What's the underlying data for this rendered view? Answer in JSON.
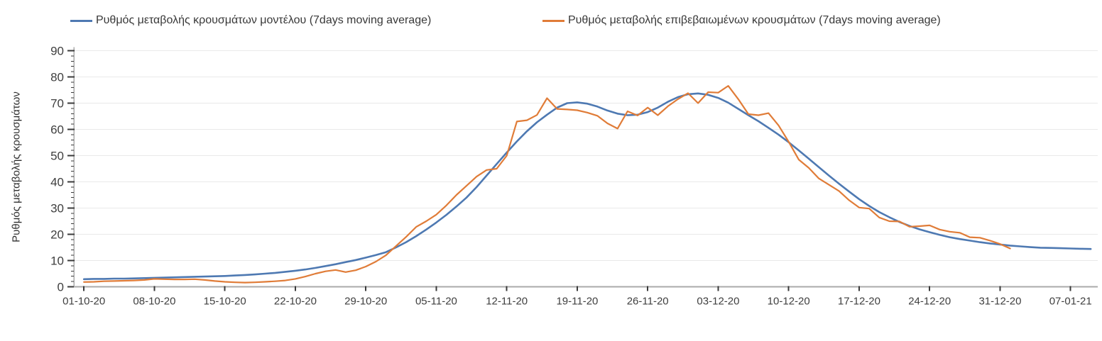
{
  "chart_data": {
    "type": "line",
    "title": "",
    "xlabel": "",
    "ylabel": "Ρυθμός μεταβολής κρουσμάτων",
    "grid": "horizontal-only",
    "legend_position": "top",
    "ylim": [
      0,
      90
    ],
    "y_tick_values": [
      0,
      10,
      20,
      30,
      40,
      50,
      60,
      70,
      80,
      90
    ],
    "y_minor_tick_step": 2,
    "x_start_date": "01-10-20",
    "x_point_interval": "1 day",
    "x_tick_days": [
      0,
      7,
      14,
      21,
      28,
      35,
      42,
      49,
      56,
      63,
      70,
      77,
      84,
      91,
      98
    ],
    "x_tick_labels": [
      "01-10-20",
      "08-10-20",
      "15-10-20",
      "22-10-20",
      "29-10-20",
      "05-11-20",
      "12-11-20",
      "19-11-20",
      "26-11-20",
      "03-12-20",
      "10-12-20",
      "17-12-20",
      "24-12-20",
      "31-12-20",
      "07-01-21"
    ],
    "x_domain_days": [
      -1,
      100.7
    ],
    "series": [
      {
        "name": "Ρυθμός μεταβολής κρουσμάτων μοντέλου (7days moving average)",
        "color": "#4e79b2",
        "marker": "line",
        "start_day": 0,
        "values": [
          2.9,
          3.0,
          3.0,
          3.1,
          3.1,
          3.2,
          3.3,
          3.4,
          3.5,
          3.6,
          3.7,
          3.8,
          3.9,
          4.0,
          4.1,
          4.3,
          4.5,
          4.7,
          5.0,
          5.3,
          5.7,
          6.1,
          6.6,
          7.2,
          7.9,
          8.6,
          9.4,
          10.2,
          11.1,
          12.1,
          13.2,
          15.0,
          17.0,
          19.3,
          21.8,
          24.5,
          27.4,
          30.6,
          34.0,
          38.0,
          42.4,
          46.8,
          51.2,
          55.4,
          59.3,
          62.7,
          65.6,
          68.3,
          70.0,
          70.3,
          69.8,
          68.7,
          67.2,
          66.0,
          65.4,
          65.6,
          66.6,
          68.3,
          70.5,
          72.3,
          73.4,
          73.7,
          73.2,
          72.0,
          70.2,
          67.8,
          65.4,
          63.1,
          60.6,
          58.0,
          55.1,
          52.0,
          48.8,
          45.6,
          42.4,
          39.3,
          36.3,
          33.4,
          30.8,
          28.5,
          26.5,
          24.7,
          23.2,
          21.9,
          20.8,
          19.8,
          18.9,
          18.2,
          17.6,
          17.0,
          16.5,
          16.1,
          15.7,
          15.4,
          15.1,
          14.9,
          14.8,
          14.7,
          14.6,
          14.5,
          14.4
        ]
      },
      {
        "name": "Ρυθμός μεταβολής επιβεβαιωμένων κρουσμάτων (7days moving average)",
        "color": "#e07c38",
        "marker": "line",
        "start_day": 0,
        "values": [
          1.8,
          1.9,
          2.1,
          2.2,
          2.3,
          2.4,
          2.6,
          3.0,
          2.9,
          2.8,
          2.8,
          2.9,
          2.6,
          2.2,
          1.9,
          1.7,
          1.6,
          1.7,
          1.9,
          2.1,
          2.4,
          3.0,
          3.9,
          5.0,
          5.9,
          6.4,
          5.6,
          6.3,
          7.7,
          9.6,
          12.0,
          15.5,
          19.0,
          22.8,
          25.0,
          27.5,
          31.0,
          35.0,
          38.5,
          42.0,
          44.5,
          45.0,
          50.0,
          63.0,
          63.5,
          65.5,
          71.9,
          67.8,
          67.6,
          67.3,
          66.4,
          65.2,
          62.3,
          60.3,
          66.9,
          65.3,
          68.3,
          65.4,
          68.8,
          71.5,
          73.8,
          70.0,
          74.2,
          74.0,
          76.6,
          71.5,
          65.8,
          65.4,
          66.2,
          61.5,
          55.3,
          48.5,
          45.3,
          41.3,
          38.9,
          36.5,
          33.0,
          30.2,
          29.8,
          26.4,
          25.0,
          24.9,
          22.9,
          23.1,
          23.4,
          21.8,
          21.0,
          20.6,
          18.9,
          18.7,
          17.6,
          16.3,
          14.6
        ]
      }
    ],
    "colors": {
      "grid_line": "#e9e9e9",
      "axis_line": "#aaaaaa",
      "tick_mark": "#3a3a3a",
      "tick_label": "#3f3f3f"
    }
  }
}
